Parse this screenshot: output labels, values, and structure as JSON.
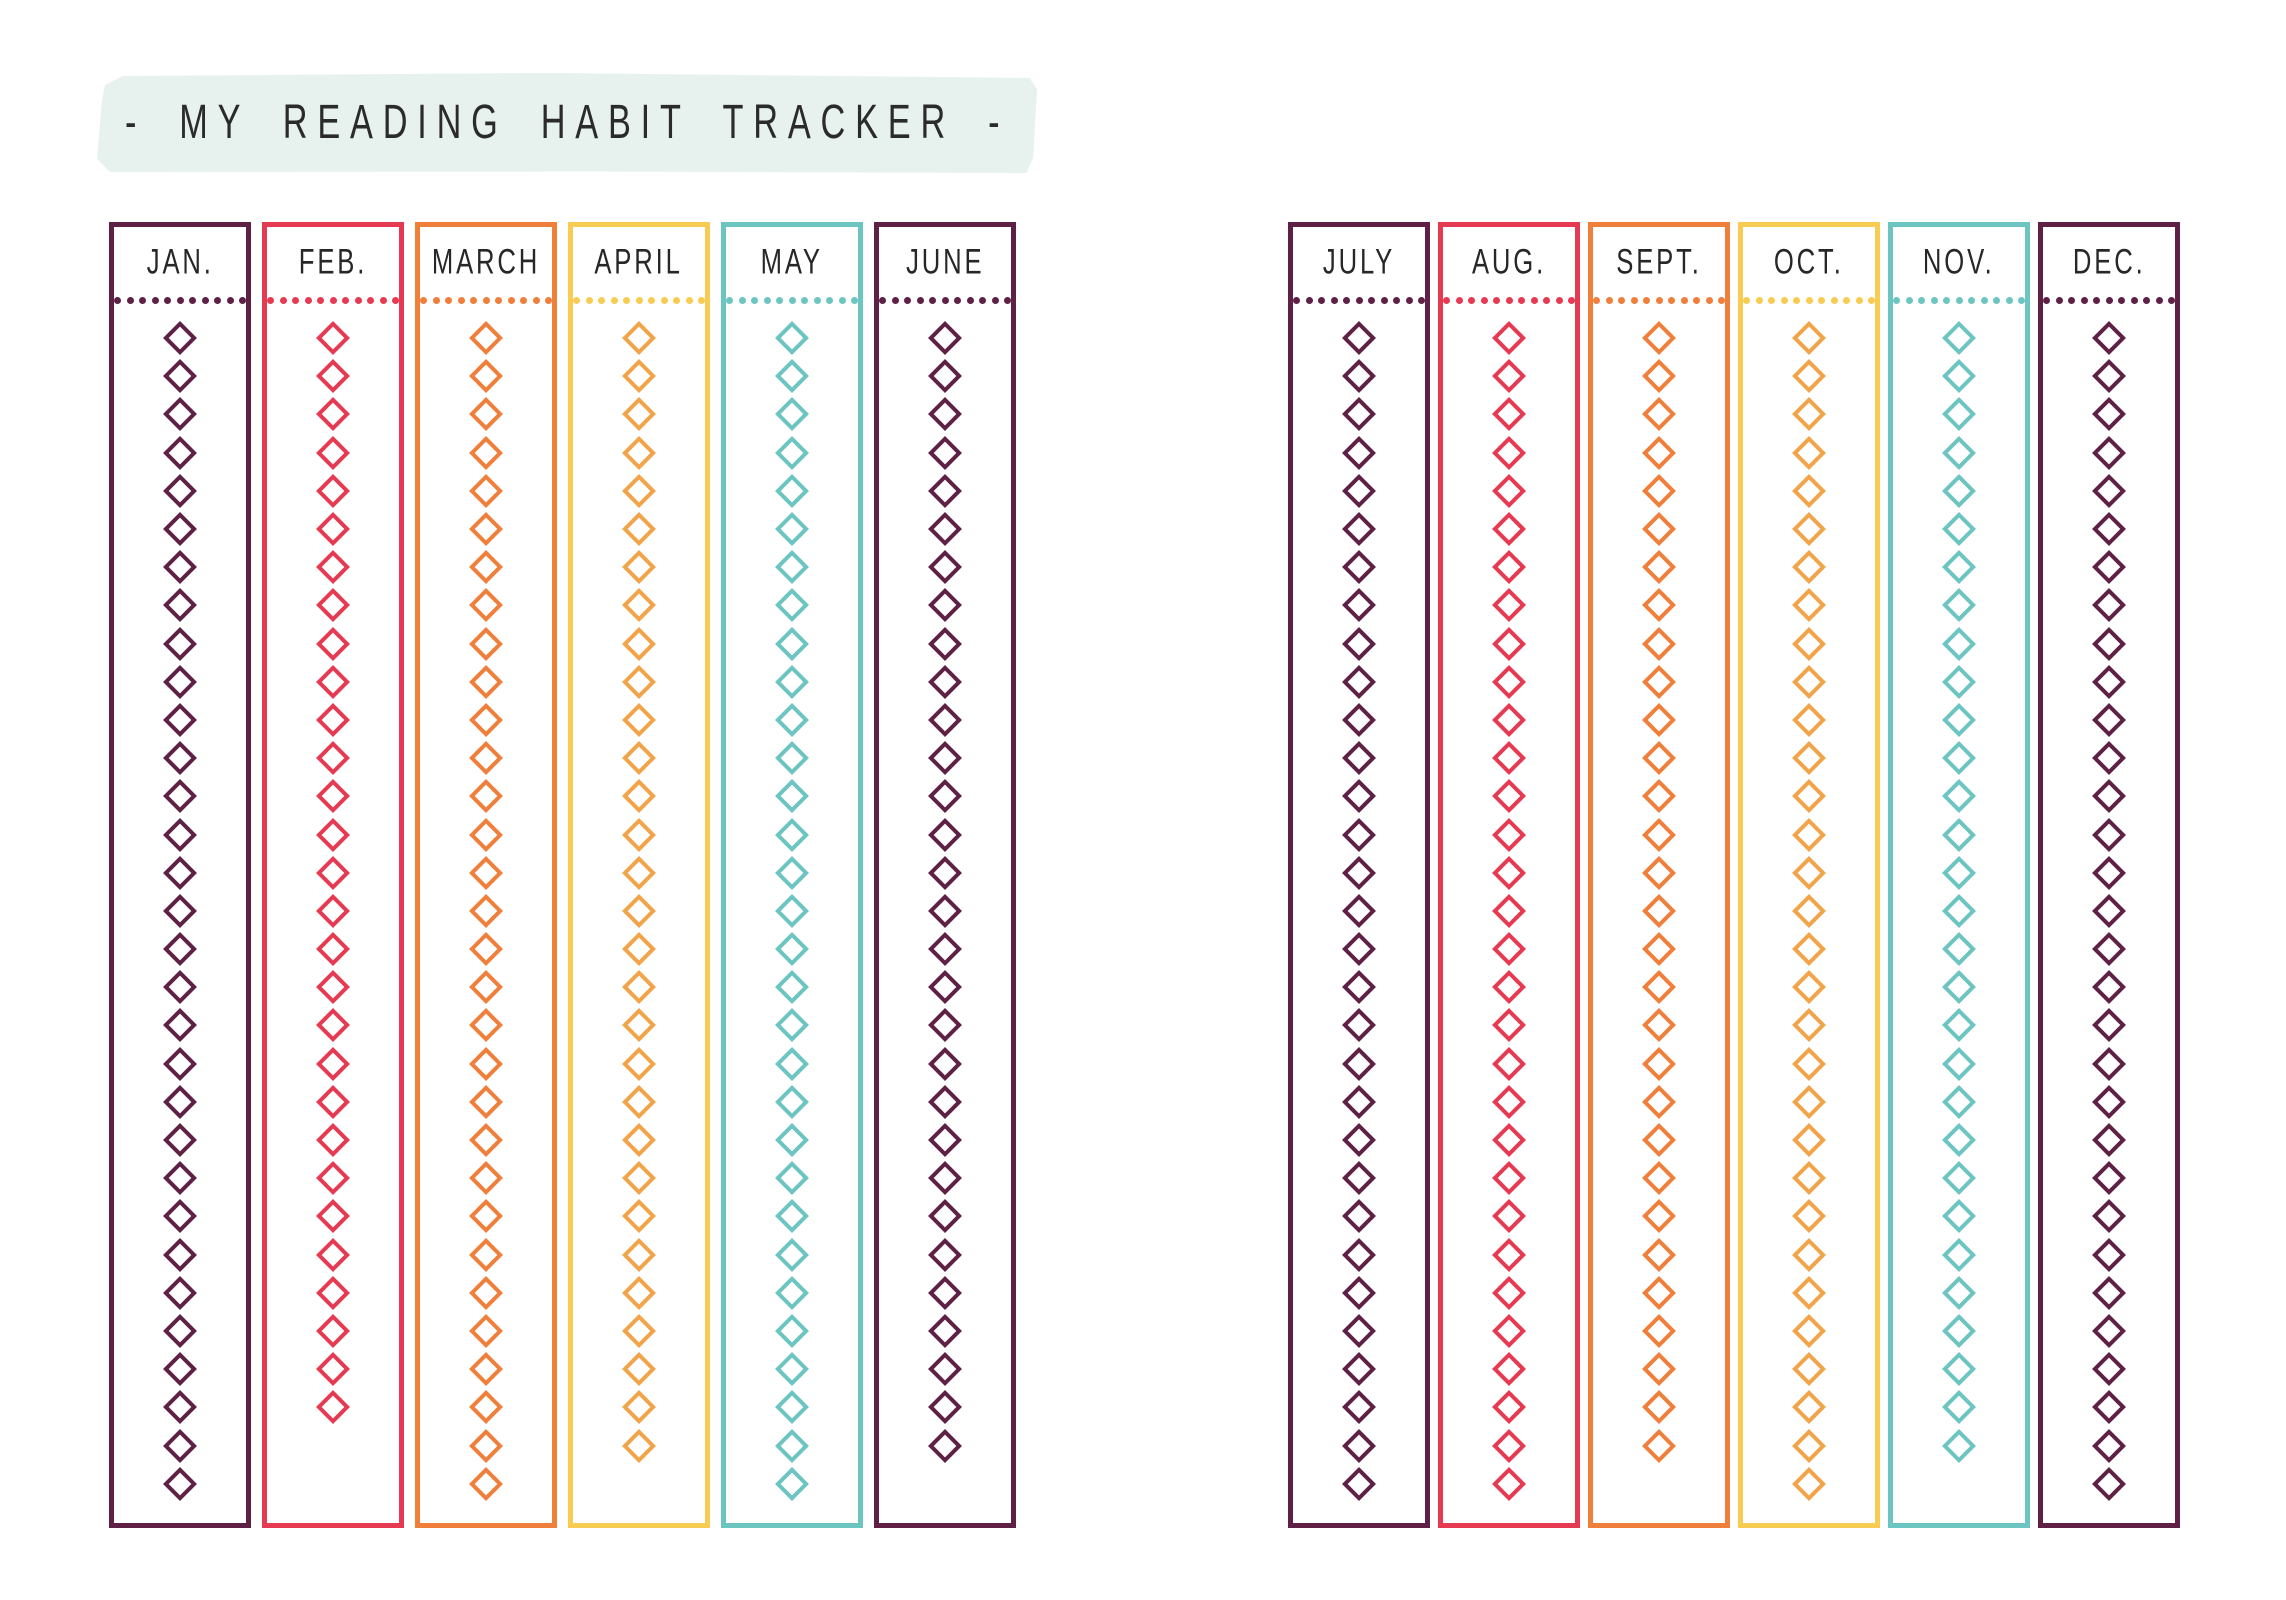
{
  "title": {
    "text": "-  MY READING HABIT TRACKER  -"
  },
  "palette": {
    "maroon": "#5e2145",
    "red": "#e63a52",
    "orange": "#ef7f3a",
    "amber": "#f2a44a",
    "yellow": "#f8cb52",
    "teal": "#6dc5c2",
    "banner_bg": "#e7f1ee",
    "title_text": "#2b2b2b",
    "label_text": "#272727",
    "page_bg": "#ffffff"
  },
  "tracker": {
    "dots_per_separator": 11,
    "groups": [
      {
        "name": "jan-june",
        "months": [
          {
            "id": "jan",
            "label": "JAN.",
            "days": 31,
            "frame_color": "maroon",
            "diamond_color": "maroon"
          },
          {
            "id": "feb",
            "label": "FEB.",
            "days": 29,
            "frame_color": "red",
            "diamond_color": "red"
          },
          {
            "id": "march",
            "label": "MARCH",
            "days": 31,
            "frame_color": "orange",
            "diamond_color": "orange"
          },
          {
            "id": "april",
            "label": "APRIL",
            "days": 30,
            "frame_color": "yellow",
            "diamond_color": "amber"
          },
          {
            "id": "may",
            "label": "MAY",
            "days": 31,
            "frame_color": "teal",
            "diamond_color": "teal"
          },
          {
            "id": "june",
            "label": "JUNE",
            "days": 30,
            "frame_color": "maroon",
            "diamond_color": "maroon"
          }
        ]
      },
      {
        "name": "july-dec",
        "months": [
          {
            "id": "july",
            "label": "JULY",
            "days": 31,
            "frame_color": "maroon",
            "diamond_color": "maroon"
          },
          {
            "id": "aug",
            "label": "AUG.",
            "days": 31,
            "frame_color": "red",
            "diamond_color": "red"
          },
          {
            "id": "sept",
            "label": "SEPT.",
            "days": 30,
            "frame_color": "orange",
            "diamond_color": "orange"
          },
          {
            "id": "oct",
            "label": "OCT.",
            "days": 31,
            "frame_color": "yellow",
            "diamond_color": "amber"
          },
          {
            "id": "nov",
            "label": "NOV.",
            "days": 30,
            "frame_color": "teal",
            "diamond_color": "teal"
          },
          {
            "id": "dec",
            "label": "DEC.",
            "days": 31,
            "frame_color": "maroon",
            "diamond_color": "maroon"
          }
        ]
      }
    ]
  }
}
